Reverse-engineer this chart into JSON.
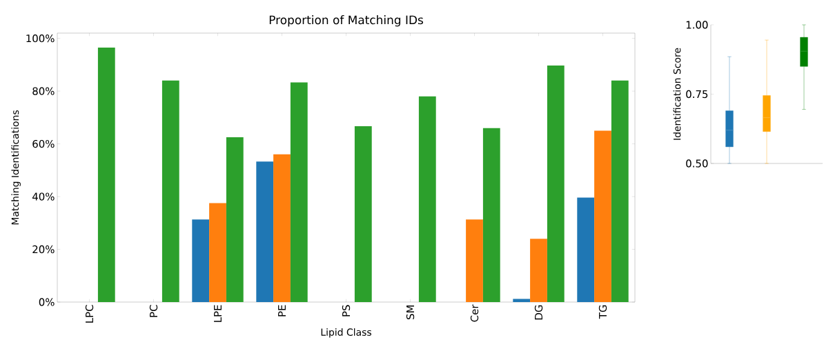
{
  "chart_data": [
    {
      "type": "bar",
      "title": "Proportion of Matching IDs",
      "xlabel": "Lipid Class",
      "ylabel": "Matching Identifications",
      "categories": [
        "LPC",
        "PC",
        "LPE",
        "PE",
        "PS",
        "SM",
        "Cer",
        "DG",
        "TG"
      ],
      "series": [
        {
          "color": "#1f77b4",
          "values": [
            0,
            0,
            31.3,
            53.3,
            0,
            0,
            0,
            1.2,
            39.6
          ]
        },
        {
          "color": "#ff7f0e",
          "values": [
            0,
            0,
            37.5,
            56,
            0,
            0,
            31.3,
            24,
            65
          ]
        },
        {
          "color": "#2ca02c",
          "values": [
            96.5,
            84,
            62.5,
            83.3,
            66.7,
            78,
            66,
            89.7,
            84
          ]
        }
      ],
      "ylim": [
        0,
        102
      ],
      "yticks": [
        {
          "value": 0,
          "label": "0%"
        },
        {
          "value": 20,
          "label": "20%"
        },
        {
          "value": 40,
          "label": "40%"
        },
        {
          "value": 60,
          "label": "60%"
        },
        {
          "value": 80,
          "label": "80%"
        },
        {
          "value": 100,
          "label": "100%"
        }
      ]
    },
    {
      "type": "box",
      "ylabel": "Identification Score",
      "categories": [
        null,
        null,
        null
      ],
      "colors": [
        "#1f77b4",
        "#ffa500",
        "#008000"
      ],
      "boxes": [
        {
          "low": 0.5,
          "q1": 0.56,
          "median": 0.62,
          "q3": 0.69,
          "high": 0.885
        },
        {
          "low": 0.5,
          "q1": 0.615,
          "median": 0.665,
          "q3": 0.745,
          "high": 0.945
        },
        {
          "low": 0.695,
          "q1": 0.85,
          "median": 0.905,
          "q3": 0.955,
          "high": 1.0
        }
      ],
      "ylim": [
        0.5,
        1.0
      ],
      "yticks": [
        {
          "value": 0.5,
          "label": "0.50"
        },
        {
          "value": 0.75,
          "label": "0.75"
        },
        {
          "value": 1.0,
          "label": "1.00"
        }
      ]
    }
  ]
}
